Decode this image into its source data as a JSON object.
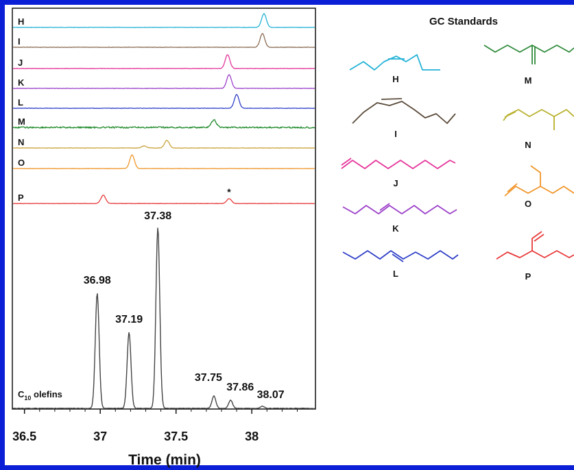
{
  "chart_data": {
    "type": "line",
    "title": "",
    "xlabel": "Time (min)",
    "ylabel": "",
    "xlim": [
      36.42,
      38.42
    ],
    "xticks": [
      36.5,
      37,
      37.5,
      38
    ],
    "xtick_labels": [
      "36.5",
      "37",
      "37.5",
      "38"
    ],
    "grid": false,
    "standard_traces": [
      {
        "name": "H",
        "color": "#22b2d6",
        "peaks": [
          {
            "x": 38.08,
            "h": 1.0
          }
        ]
      },
      {
        "name": "I",
        "color": "#8a6a52",
        "peaks": [
          {
            "x": 38.07,
            "h": 1.0
          }
        ]
      },
      {
        "name": "J",
        "color": "#e5339a",
        "peaks": [
          {
            "x": 37.84,
            "h": 1.0
          }
        ]
      },
      {
        "name": "K",
        "color": "#9b3fc8",
        "peaks": [
          {
            "x": 37.85,
            "h": 1.0
          }
        ]
      },
      {
        "name": "L",
        "color": "#2f3fc8",
        "peaks": [
          {
            "x": 37.9,
            "h": 1.0
          }
        ]
      },
      {
        "name": "M",
        "color": "#1f8a2a",
        "peaks": [
          {
            "x": 37.75,
            "h": 0.55
          }
        ],
        "noisy": true
      },
      {
        "name": "N",
        "color": "#c9a23a",
        "peaks": [
          {
            "x": 37.29,
            "h": 0.15
          },
          {
            "x": 37.44,
            "h": 0.55
          }
        ]
      },
      {
        "name": "O",
        "color": "#f0962a",
        "peaks": [
          {
            "x": 37.21,
            "h": 1.0
          }
        ]
      },
      {
        "name": "P",
        "color": "#e83a3a",
        "peaks": [
          {
            "x": 37.02,
            "h": 0.6
          },
          {
            "x": 37.85,
            "h": 0.35
          }
        ]
      }
    ],
    "asterisk_label": "*",
    "asterisk_x": 37.85,
    "main_trace": {
      "name": "C10 olefins",
      "label_main": "C",
      "label_sub": "10",
      "label_rest": " olefins",
      "color": "#444444",
      "peaks": [
        {
          "x": 36.98,
          "h": 0.56,
          "label": "36.98"
        },
        {
          "x": 37.19,
          "h": 0.37,
          "label": "37.19"
        },
        {
          "x": 37.38,
          "h": 0.88,
          "label": "37.38"
        },
        {
          "x": 37.75,
          "h": 0.06,
          "label": "37.75"
        },
        {
          "x": 37.86,
          "h": 0.04,
          "label": "37.86"
        },
        {
          "x": 38.07,
          "h": 0.01,
          "label": "38.07"
        }
      ]
    }
  },
  "standards_panel": {
    "title": "GC Standards",
    "items": [
      {
        "label": "H",
        "color": "#22b2d6"
      },
      {
        "label": "I",
        "color": "#5a4a3a"
      },
      {
        "label": "J",
        "color": "#e5339a"
      },
      {
        "label": "K",
        "color": "#9b3fc8"
      },
      {
        "label": "L",
        "color": "#2f3fc8"
      },
      {
        "label": "M",
        "color": "#2f8a3a"
      },
      {
        "label": "N",
        "color": "#b8b02a"
      },
      {
        "label": "O",
        "color": "#f0962a"
      },
      {
        "label": "P",
        "color": "#e83a3a"
      }
    ]
  },
  "colors": {
    "frame": "#0b1fd6",
    "axis": "#111111"
  }
}
